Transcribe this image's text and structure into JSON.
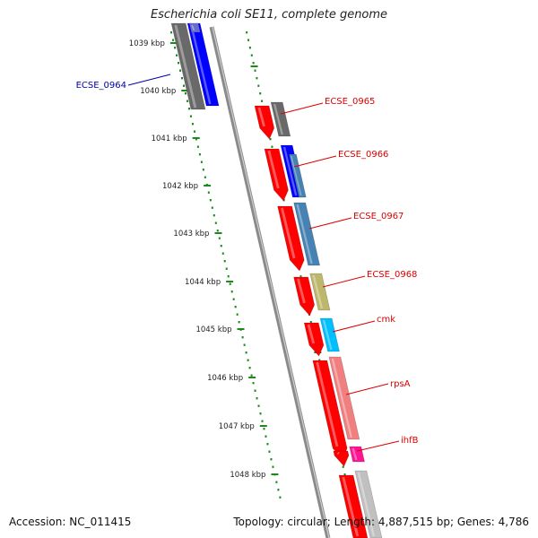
{
  "title": "Escherichia coli SE11, complete genome",
  "footer": {
    "accession": "Accession: NC_011415",
    "stats": "Topology: circular; Length: 4,887,515 bp; Genes: 4,786"
  },
  "ticks": [
    "1039 kbp",
    "1040 kbp",
    "1041 kbp",
    "1042 kbp",
    "1043 kbp",
    "1044 kbp",
    "1045 kbp",
    "1046 kbp",
    "1047 kbp",
    "1048 kbp"
  ],
  "gene_labels": [
    {
      "text": "ECSE_0964",
      "color": "#0000aa"
    },
    {
      "text": "ECSE_0965",
      "color": "#dd0000"
    },
    {
      "text": "ECSE_0966",
      "color": "#dd0000"
    },
    {
      "text": "ECSE_0967",
      "color": "#dd0000"
    },
    {
      "text": "ECSE_0968",
      "color": "#dd0000"
    },
    {
      "text": "cmk",
      "color": "#dd0000"
    },
    {
      "text": "rpsA",
      "color": "#dd0000"
    },
    {
      "text": "ihfB",
      "color": "#dd0000"
    }
  ],
  "colors": {
    "backbone": "#808080",
    "tick_dots": "#1a8a1a",
    "cds": "#ff0000",
    "blue": "#0000ff",
    "steelblue": "#4682b4",
    "khaki": "#bdb76b",
    "cyan": "#00bfff",
    "salmon": "#f08080",
    "magenta": "#ff1493",
    "grey": "#696969",
    "lightgrey": "#c0c0c0"
  }
}
